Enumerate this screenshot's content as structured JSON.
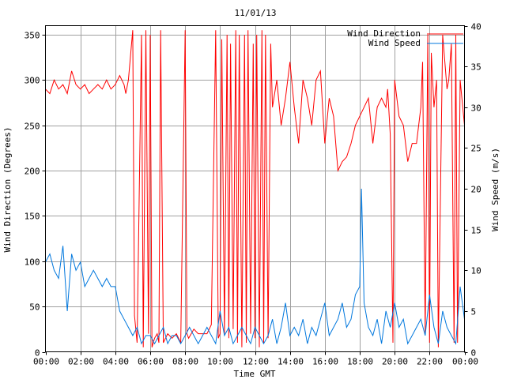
{
  "chart_data": {
    "type": "line",
    "title": "11/01/13",
    "xlabel": "Time GMT",
    "ylabel_left": "Wind Direction (Degrees)",
    "ylabel_right": "Wind Speed (m/s)",
    "xlim": [
      0,
      24
    ],
    "ylim_left": [
      0,
      360
    ],
    "ylim_right": [
      0,
      40
    ],
    "x_tick_labels": [
      "00:00",
      "02:00",
      "04:00",
      "06:00",
      "08:00",
      "10:00",
      "12:00",
      "14:00",
      "16:00",
      "18:00",
      "20:00",
      "22:00",
      "00:00"
    ],
    "y_left_ticks": [
      0,
      50,
      100,
      150,
      200,
      250,
      300,
      350
    ],
    "y_right_ticks": [
      0,
      5,
      10,
      15,
      20,
      25,
      30,
      35,
      40
    ],
    "grid": true,
    "legend_position": "top-right",
    "series": [
      {
        "name": "Wind Direction",
        "axis": "left",
        "color": "#ff0000",
        "x": [
          0.0,
          0.25,
          0.5,
          0.75,
          1.0,
          1.25,
          1.5,
          1.75,
          2.0,
          2.25,
          2.5,
          2.75,
          3.0,
          3.25,
          3.5,
          3.75,
          4.0,
          4.25,
          4.5,
          4.6,
          4.75,
          5.0,
          5.1,
          5.25,
          5.5,
          5.6,
          5.75,
          5.9,
          6.0,
          6.1,
          6.25,
          6.4,
          6.5,
          6.6,
          6.75,
          7.0,
          7.25,
          7.5,
          7.75,
          8.0,
          8.1,
          8.2,
          8.5,
          8.75,
          9.0,
          9.25,
          9.5,
          9.75,
          9.9,
          10.0,
          10.1,
          10.25,
          10.4,
          10.5,
          10.6,
          10.75,
          10.9,
          11.0,
          11.1,
          11.25,
          11.4,
          11.5,
          11.6,
          11.75,
          11.9,
          12.0,
          12.1,
          12.25,
          12.4,
          12.5,
          12.6,
          12.75,
          12.9,
          13.0,
          13.25,
          13.5,
          13.75,
          14.0,
          14.25,
          14.5,
          14.75,
          15.0,
          15.25,
          15.5,
          15.75,
          16.0,
          16.25,
          16.5,
          16.75,
          17.0,
          17.25,
          17.5,
          17.75,
          18.0,
          18.25,
          18.5,
          18.75,
          19.0,
          19.25,
          19.5,
          19.6,
          19.75,
          19.9,
          20.0,
          20.25,
          20.5,
          20.75,
          21.0,
          21.25,
          21.5,
          21.6,
          21.75,
          21.9,
          22.0,
          22.1,
          22.25,
          22.4,
          22.5,
          22.75,
          23.0,
          23.1,
          23.25,
          23.4,
          23.5,
          23.6,
          23.75,
          24.0
        ],
        "values": [
          290,
          285,
          300,
          290,
          295,
          285,
          310,
          295,
          290,
          295,
          285,
          290,
          295,
          290,
          300,
          290,
          295,
          305,
          295,
          285,
          300,
          355,
          40,
          10,
          350,
          5,
          355,
          20,
          350,
          5,
          15,
          20,
          10,
          355,
          10,
          20,
          15,
          20,
          10,
          355,
          20,
          15,
          25,
          20,
          20,
          20,
          30,
          355,
          15,
          20,
          345,
          20,
          350,
          15,
          340,
          25,
          355,
          10,
          350,
          5,
          350,
          10,
          355,
          20,
          340,
          15,
          350,
          5,
          355,
          10,
          350,
          15,
          340,
          270,
          300,
          250,
          280,
          320,
          270,
          230,
          300,
          280,
          250,
          300,
          310,
          230,
          280,
          260,
          200,
          210,
          215,
          230,
          250,
          260,
          270,
          280,
          230,
          270,
          280,
          270,
          290,
          240,
          10,
          300,
          260,
          250,
          210,
          230,
          230,
          270,
          320,
          20,
          350,
          10,
          330,
          270,
          300,
          5,
          350,
          290,
          300,
          340,
          10,
          350,
          10,
          300,
          250
        ]
      },
      {
        "name": "Wind Speed",
        "axis": "right",
        "color": "#0077dd",
        "x": [
          0.0,
          0.25,
          0.5,
          0.75,
          1.0,
          1.25,
          1.5,
          1.75,
          2.0,
          2.25,
          2.5,
          2.75,
          3.0,
          3.25,
          3.5,
          3.75,
          4.0,
          4.25,
          4.5,
          4.75,
          5.0,
          5.25,
          5.5,
          5.75,
          6.0,
          6.25,
          6.5,
          6.75,
          7.0,
          7.25,
          7.5,
          7.75,
          8.0,
          8.25,
          8.5,
          8.75,
          9.0,
          9.25,
          9.5,
          9.75,
          10.0,
          10.25,
          10.5,
          10.75,
          11.0,
          11.25,
          11.5,
          11.75,
          12.0,
          12.25,
          12.5,
          12.75,
          13.0,
          13.25,
          13.5,
          13.75,
          14.0,
          14.25,
          14.5,
          14.75,
          15.0,
          15.25,
          15.5,
          15.75,
          16.0,
          16.25,
          16.5,
          16.75,
          17.0,
          17.25,
          17.5,
          17.75,
          18.0,
          18.1,
          18.25,
          18.5,
          18.75,
          19.0,
          19.25,
          19.5,
          19.75,
          20.0,
          20.25,
          20.5,
          20.75,
          21.0,
          21.25,
          21.5,
          21.75,
          22.0,
          22.25,
          22.5,
          22.75,
          23.0,
          23.25,
          23.5,
          23.75,
          24.0
        ],
        "values": [
          11,
          12,
          10,
          9,
          13,
          5,
          12,
          10,
          11,
          8,
          9,
          10,
          9,
          8,
          9,
          8,
          8,
          5,
          4,
          3,
          2,
          3,
          1,
          2,
          2,
          1,
          2,
          3,
          1,
          2,
          2,
          1,
          2,
          3,
          2,
          1,
          2,
          3,
          2,
          1,
          5,
          2,
          3,
          1,
          2,
          3,
          2,
          1,
          3,
          2,
          1,
          2,
          4,
          1,
          3,
          6,
          2,
          3,
          2,
          4,
          1,
          3,
          2,
          4,
          6,
          2,
          3,
          4,
          6,
          3,
          4,
          7,
          8,
          20,
          6,
          3,
          2,
          4,
          1,
          5,
          3,
          6,
          3,
          4,
          1,
          2,
          3,
          4,
          2,
          7,
          3,
          1,
          5,
          3,
          2,
          1,
          8,
          4
        ]
      }
    ]
  }
}
